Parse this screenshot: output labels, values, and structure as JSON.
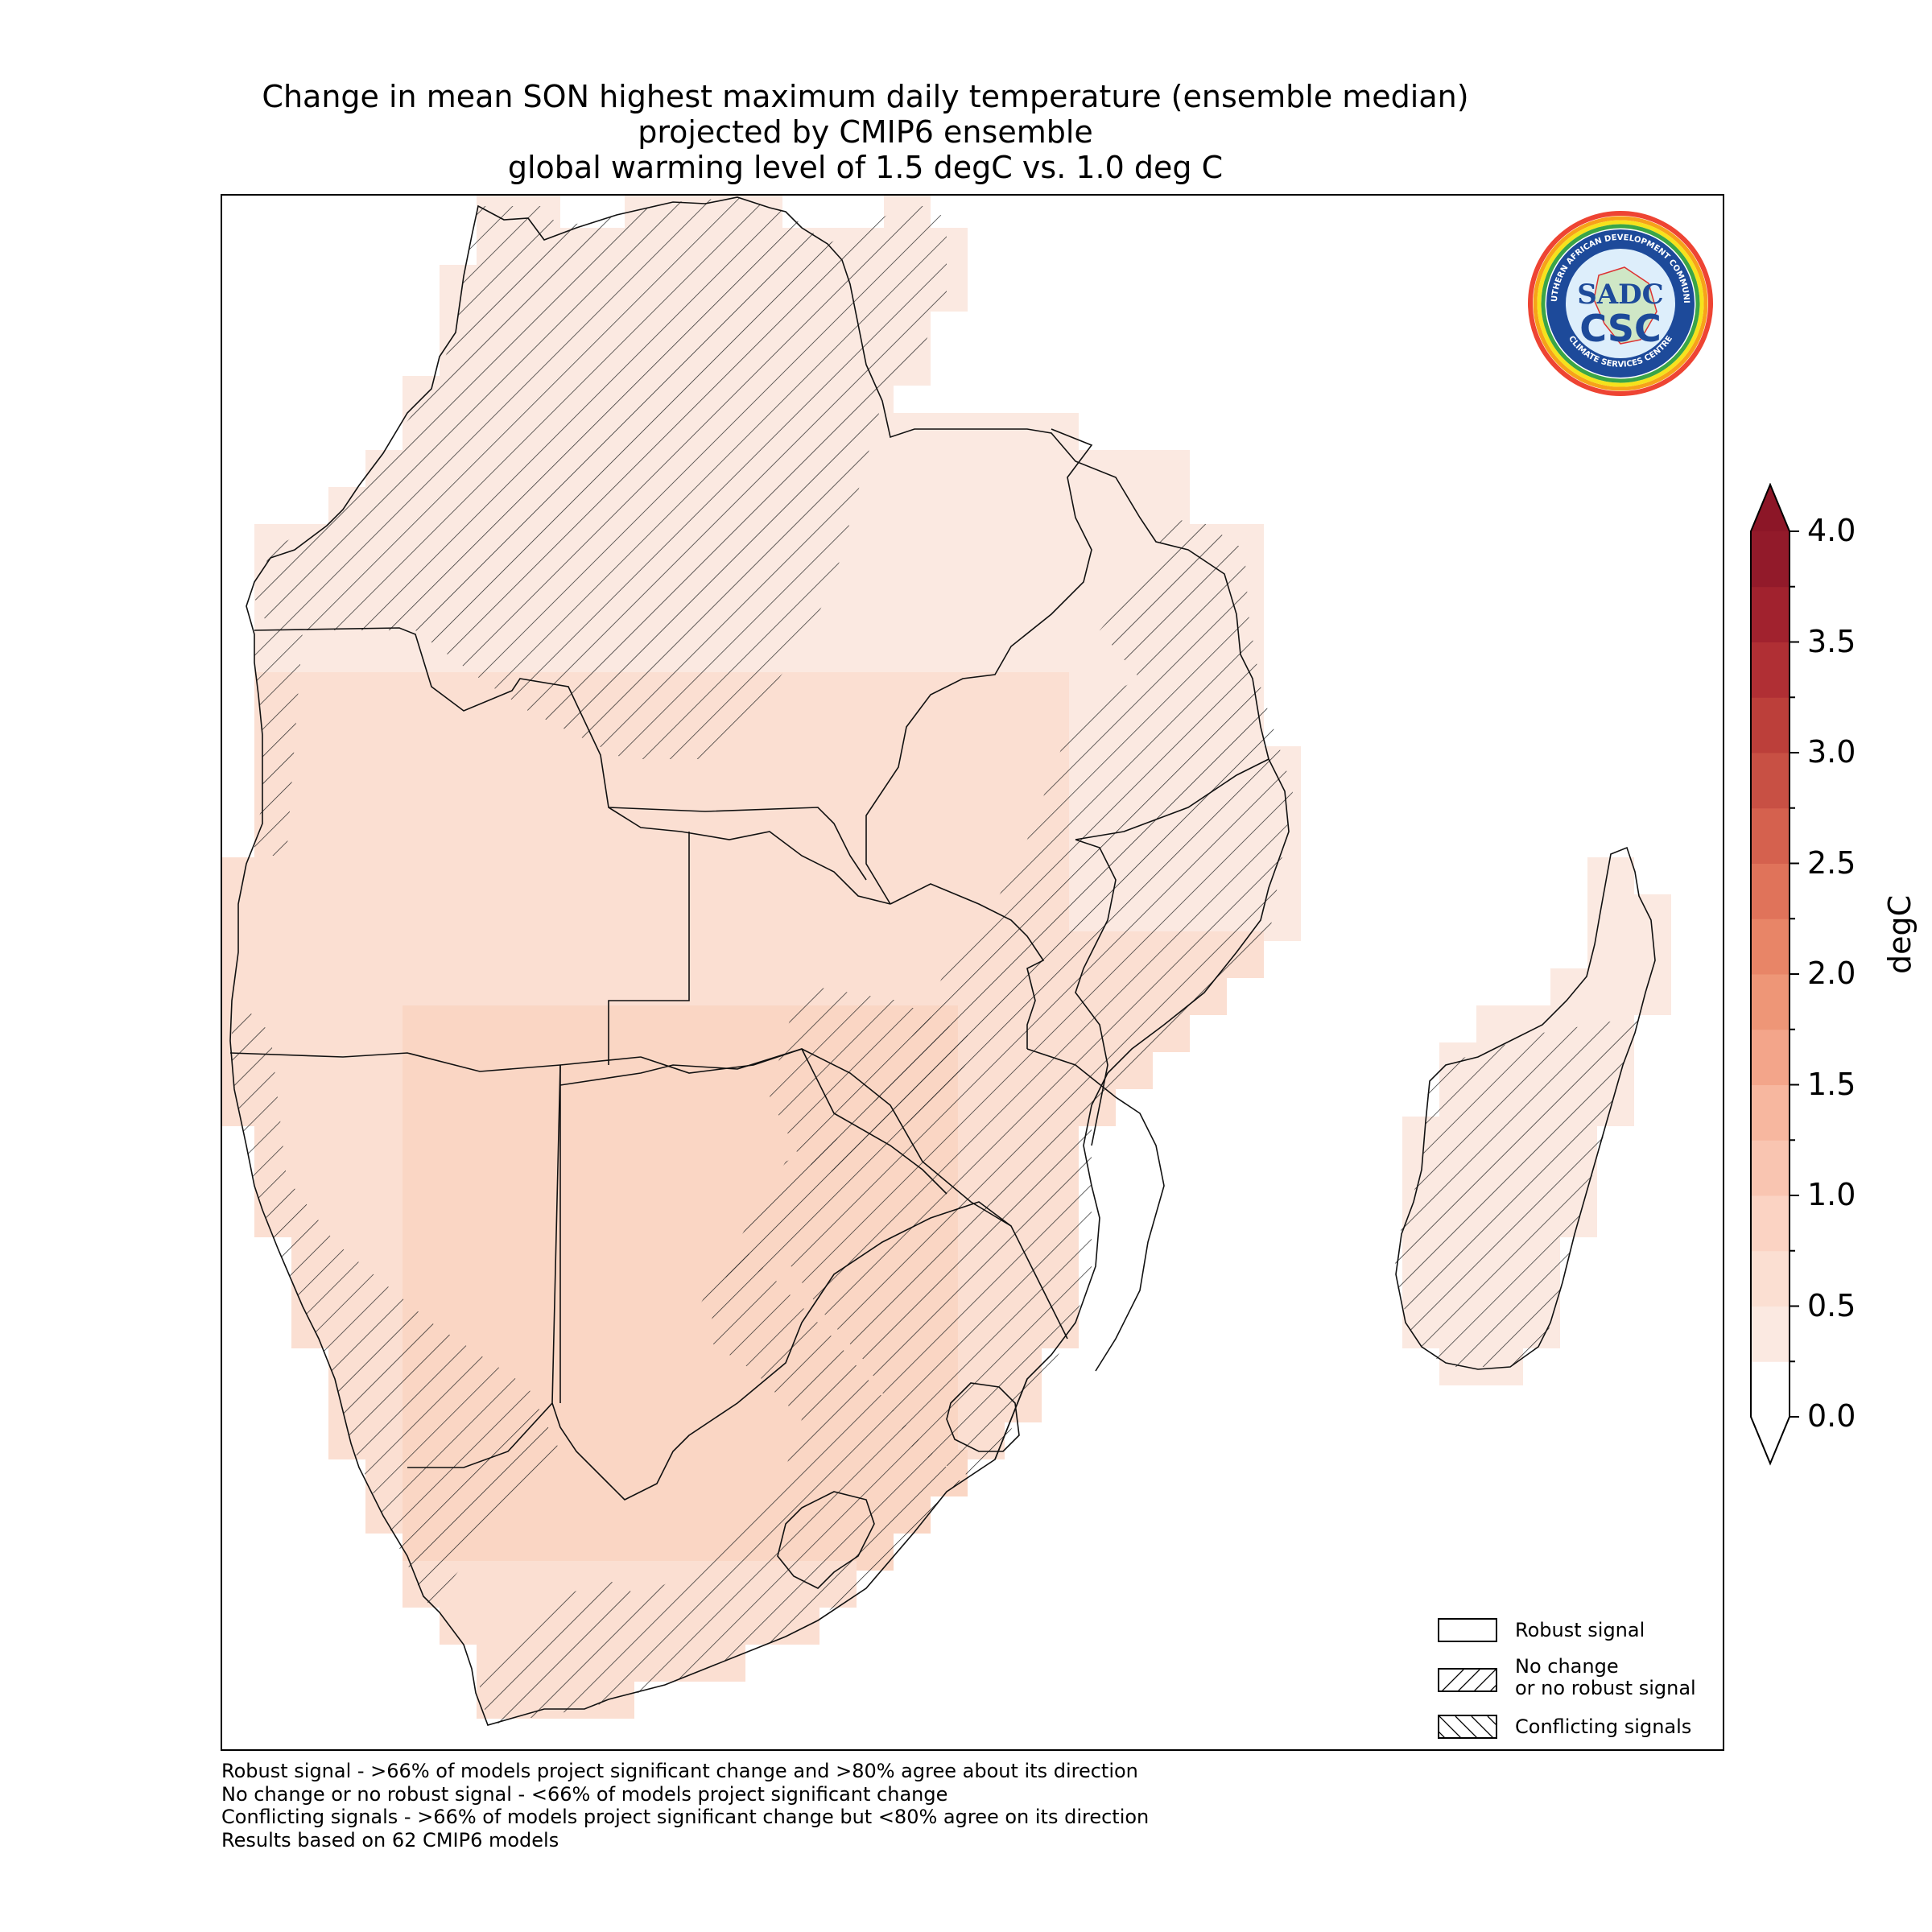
{
  "title": {
    "line1": "Change in mean SON highest maximum daily temperature (ensemble median)",
    "line2": "projected by CMIP6 ensemble",
    "line3": "global warming level of 1.5 degC vs. 1.0 deg C"
  },
  "logo": {
    "text_top": "SOUTHERN AFRICAN DEVELOPMENT COMMUNITY",
    "text_bottom": "CLIMATE SERVICES CENTRE",
    "monogram": "SADC",
    "acronym": "CSC"
  },
  "legend": {
    "items": [
      {
        "label": "Robust signal",
        "pattern": "none"
      },
      {
        "label_line1": "No change",
        "label_line2": "or no robust signal",
        "pattern": "forward-hatch"
      },
      {
        "label": "Conflicting signals",
        "pattern": "back-hatch"
      }
    ]
  },
  "colorbar": {
    "title": "degC",
    "ticks": [
      "0.0",
      "0.5",
      "1.0",
      "1.5",
      "2.0",
      "2.5",
      "3.0",
      "3.5",
      "4.0"
    ],
    "min": 0.0,
    "max": 4.0,
    "step": 0.25,
    "extend": "both",
    "colors": [
      "#ffffff",
      "#fbe9e1",
      "#fbdfd2",
      "#fbd3c3",
      "#f9c5b1",
      "#f7b79f",
      "#f3a58a",
      "#ee9677",
      "#e88567",
      "#e0735a",
      "#d5614e",
      "#c85044",
      "#bc3f3a",
      "#b02f34",
      "#a1222e",
      "#921a2a"
    ],
    "over_color": "#8c1627",
    "under_color": "#ffffff"
  },
  "notes": [
    "Robust signal - >66% of models project significant change and >80% agree about its direction",
    "No change or no robust signal - <66% of models project significant change",
    "Conflicting signals - >66% of models project significant change but <80% agree on its direction",
    "Results based on 62 CMIP6 models"
  ],
  "map_data": {
    "region": "Southern Africa (SADC)",
    "variable": "Change in mean SON highest maximum daily temperature",
    "value_range_degC": [
      0.25,
      1.0
    ],
    "typical_value_degC": "0.5-1.0",
    "colors": {
      "low": "#fbe9e1",
      "mid": "#fbdfd2",
      "high": "#fad6c4"
    }
  }
}
